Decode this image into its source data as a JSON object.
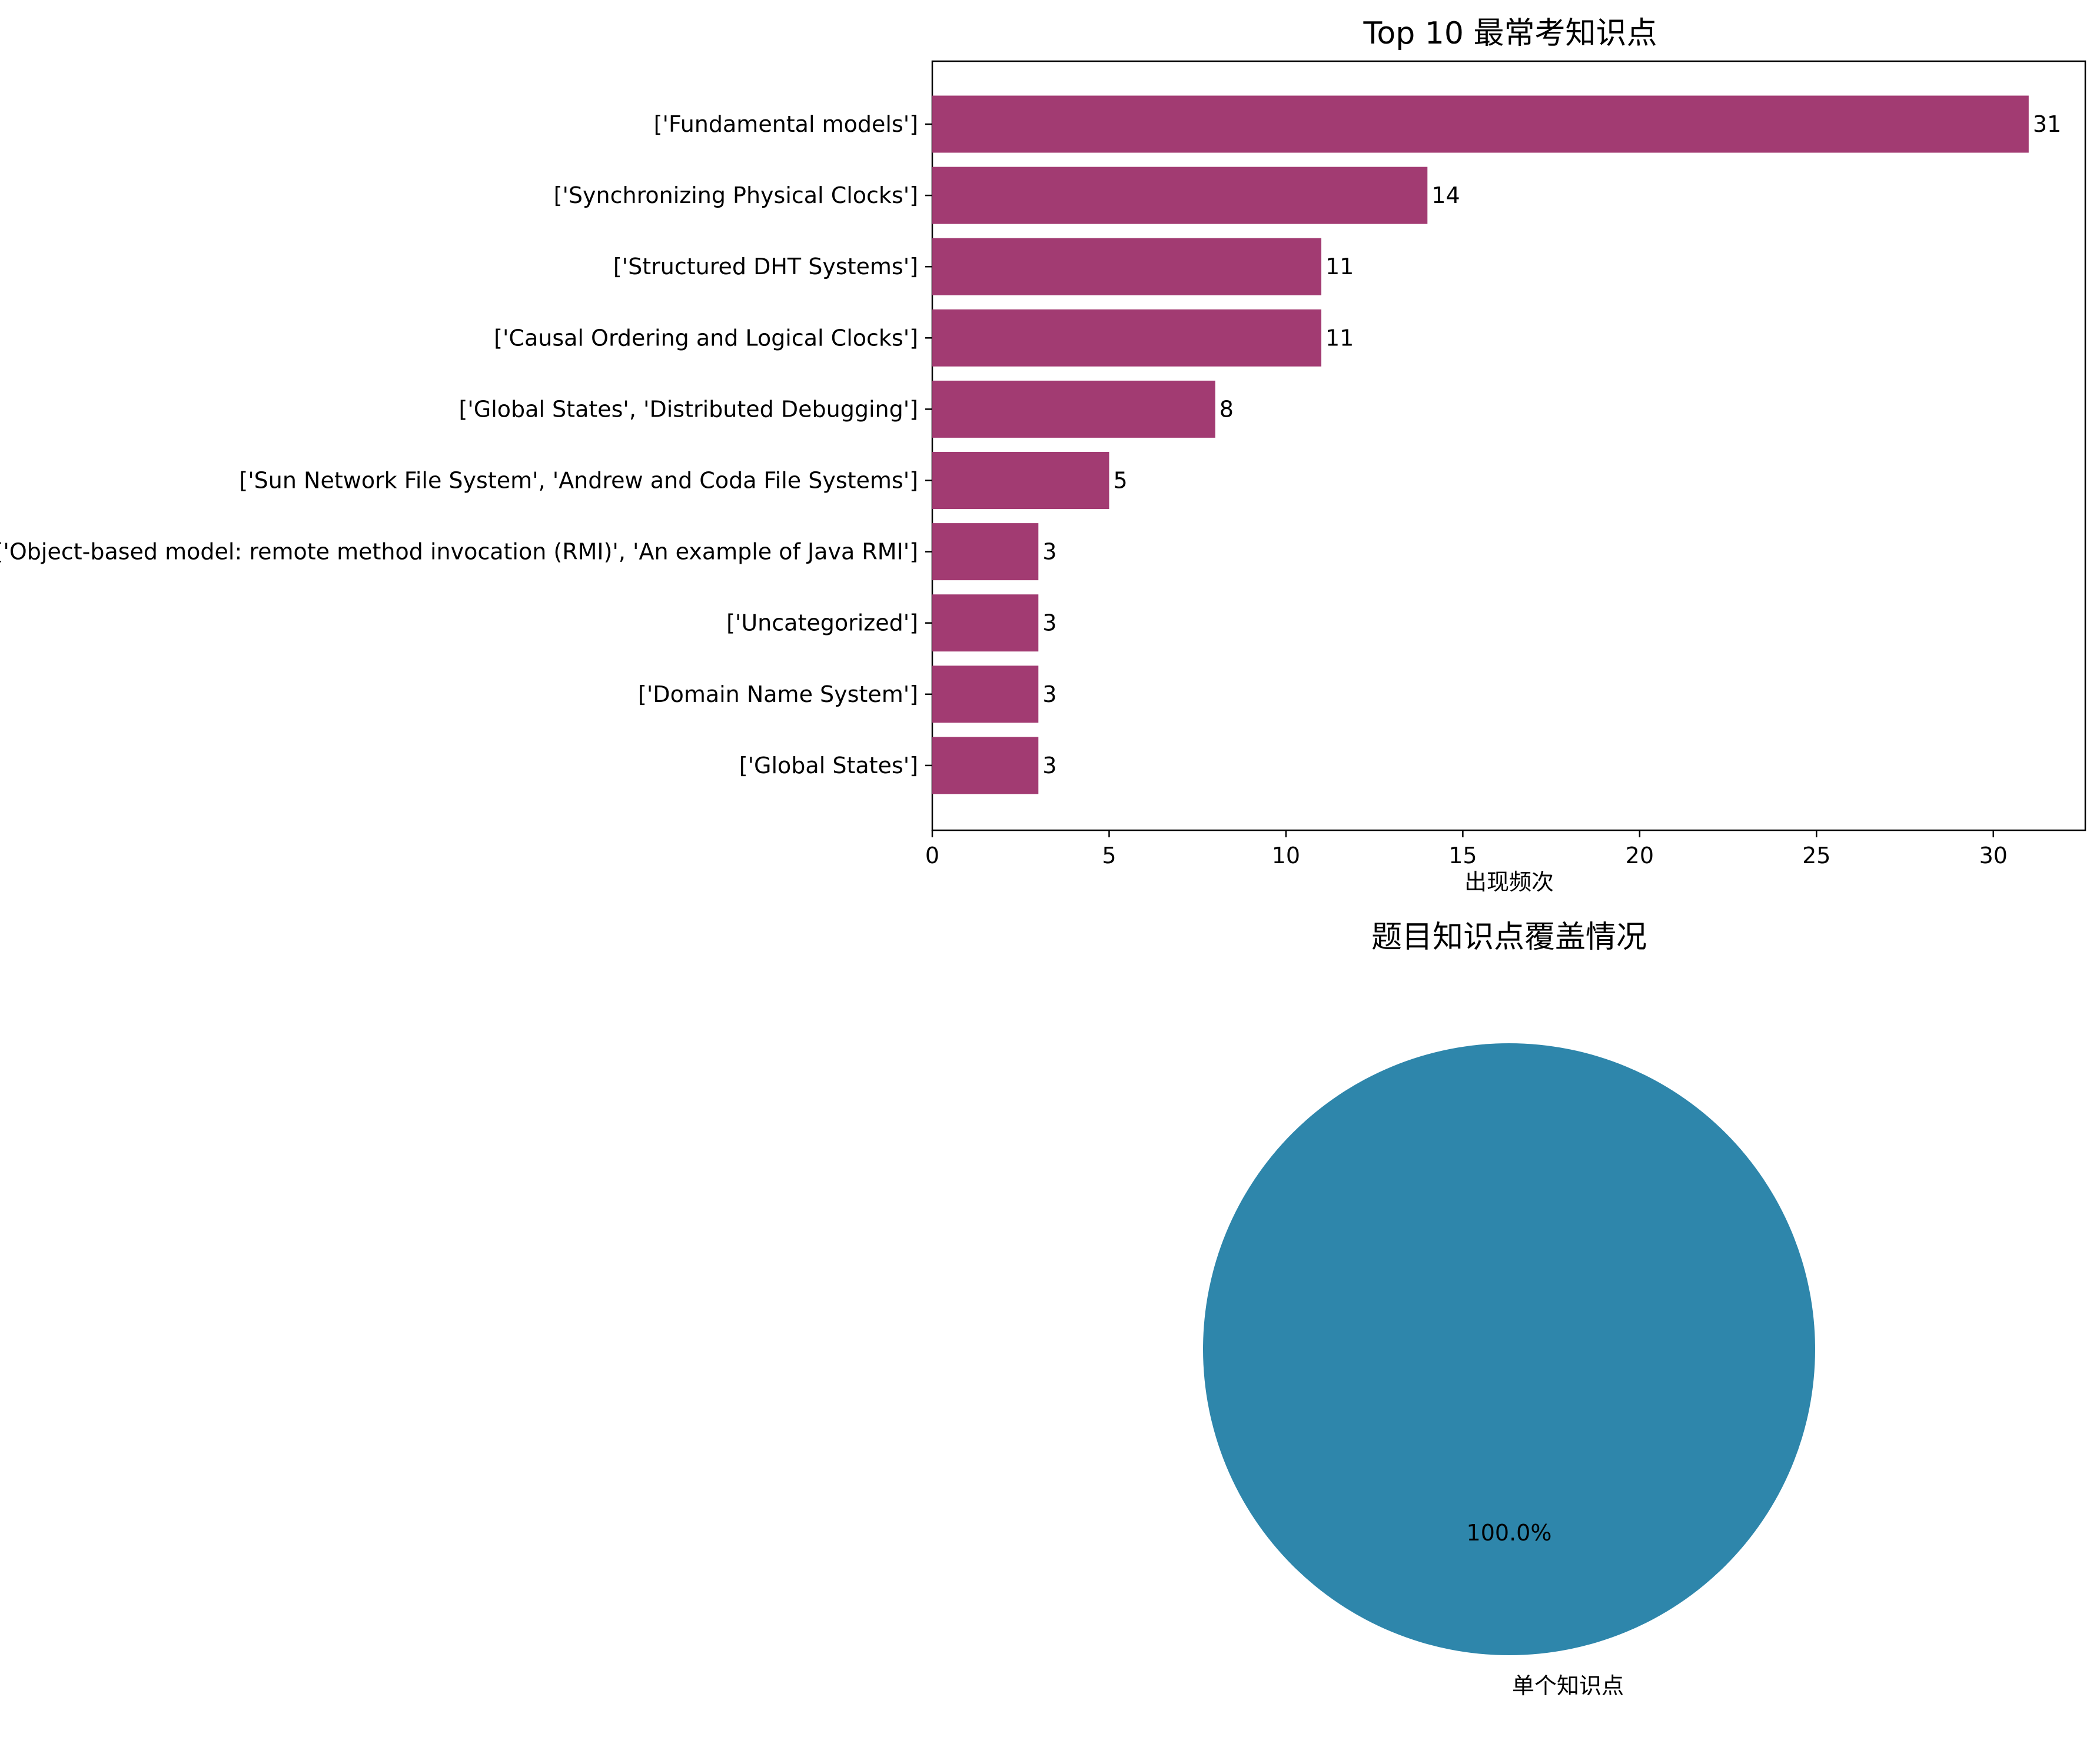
{
  "chart_data": [
    {
      "type": "bar",
      "orientation": "horizontal",
      "title": "Top 10 最常考知识点",
      "xlabel": "出现频次",
      "ylabel": "",
      "categories": [
        "['Fundamental models']",
        "['Synchronizing Physical Clocks']",
        "['Structured DHT Systems']",
        "['Causal Ordering and Logical Clocks']",
        "['Global States', 'Distributed Debugging']",
        "['Sun Network File System', 'Andrew and Coda File Systems']",
        "['Object-based model: remote method invocation (RMI)', 'An example of Java RMI']",
        "['Uncategorized']",
        "['Domain Name System']",
        "['Global States']"
      ],
      "values": [
        31,
        14,
        11,
        11,
        8,
        5,
        3,
        3,
        3,
        3
      ],
      "value_labels": [
        "31",
        "14",
        "11",
        "11",
        "8",
        "5",
        "3",
        "3",
        "3",
        "3"
      ],
      "xlim": [
        0,
        32.6
      ],
      "xticks": [
        0,
        5,
        10,
        15,
        20,
        25,
        30
      ],
      "xtick_labels": [
        "0",
        "5",
        "10",
        "15",
        "20",
        "25",
        "30"
      ],
      "bar_color": "#a23b72",
      "grid": false
    },
    {
      "type": "pie",
      "title": "题目知识点覆盖情况",
      "slices": [
        {
          "label": "单个知识点",
          "value": 100.0,
          "pct_label": "100.0%",
          "color": "#2e86ab"
        }
      ]
    }
  ]
}
